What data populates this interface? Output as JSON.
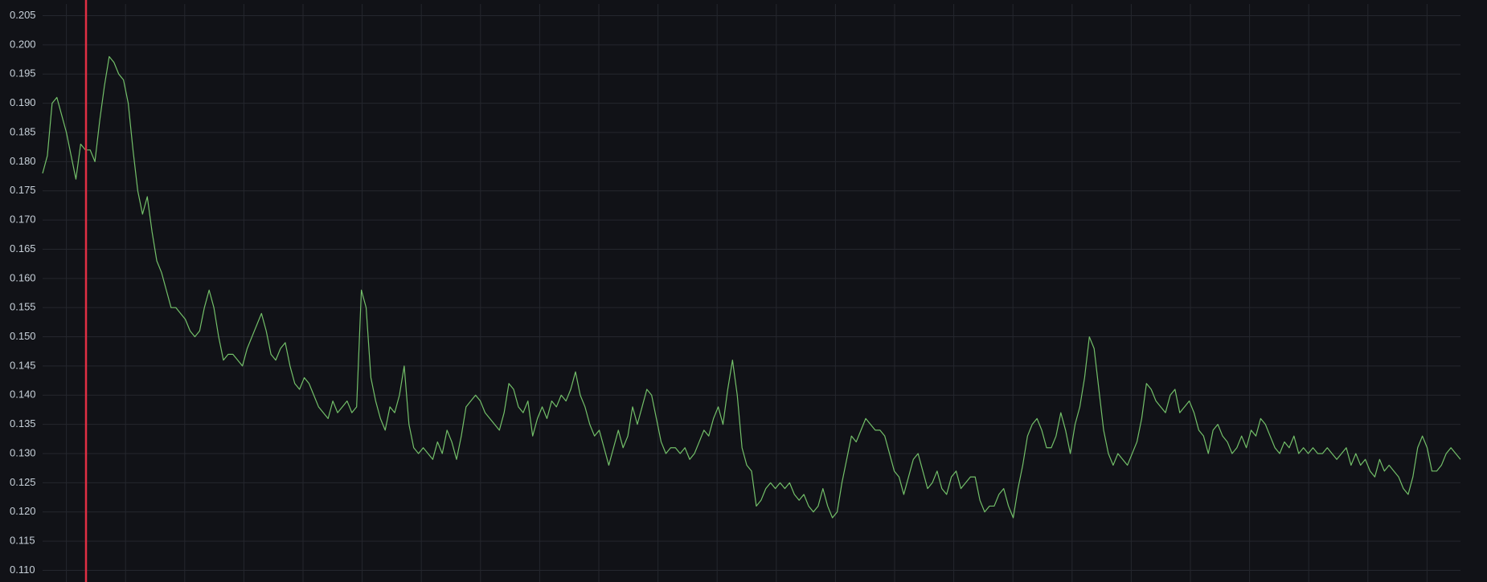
{
  "chart_data": {
    "type": "line",
    "series": [
      {
        "color": "#73bf69",
        "values": [
          0.178,
          0.181,
          0.19,
          0.191,
          0.188,
          0.185,
          0.181,
          0.177,
          0.183,
          0.182,
          0.182,
          0.18,
          0.187,
          0.193,
          0.198,
          0.197,
          0.195,
          0.194,
          0.19,
          0.182,
          0.175,
          0.171,
          0.174,
          0.168,
          0.163,
          0.161,
          0.158,
          0.155,
          0.155,
          0.154,
          0.153,
          0.151,
          0.15,
          0.151,
          0.155,
          0.158,
          0.155,
          0.15,
          0.146,
          0.147,
          0.147,
          0.146,
          0.145,
          0.148,
          0.15,
          0.152,
          0.154,
          0.151,
          0.147,
          0.146,
          0.148,
          0.149,
          0.145,
          0.142,
          0.141,
          0.143,
          0.142,
          0.14,
          0.138,
          0.137,
          0.136,
          0.139,
          0.137,
          0.138,
          0.139,
          0.137,
          0.138,
          0.158,
          0.155,
          0.143,
          0.139,
          0.136,
          0.134,
          0.138,
          0.137,
          0.14,
          0.145,
          0.135,
          0.131,
          0.13,
          0.131,
          0.13,
          0.129,
          0.132,
          0.13,
          0.134,
          0.132,
          0.129,
          0.133,
          0.138,
          0.139,
          0.14,
          0.139,
          0.137,
          0.136,
          0.135,
          0.134,
          0.137,
          0.142,
          0.141,
          0.138,
          0.137,
          0.139,
          0.133,
          0.136,
          0.138,
          0.136,
          0.139,
          0.138,
          0.14,
          0.139,
          0.141,
          0.144,
          0.14,
          0.138,
          0.135,
          0.133,
          0.134,
          0.131,
          0.128,
          0.131,
          0.134,
          0.131,
          0.133,
          0.138,
          0.135,
          0.138,
          0.141,
          0.14,
          0.136,
          0.132,
          0.13,
          0.131,
          0.131,
          0.13,
          0.131,
          0.129,
          0.13,
          0.132,
          0.134,
          0.133,
          0.136,
          0.138,
          0.135,
          0.141,
          0.146,
          0.14,
          0.131,
          0.128,
          0.127,
          0.121,
          0.122,
          0.124,
          0.125,
          0.124,
          0.125,
          0.124,
          0.125,
          0.123,
          0.122,
          0.123,
          0.121,
          0.12,
          0.121,
          0.124,
          0.121,
          0.119,
          0.12,
          0.125,
          0.129,
          0.133,
          0.132,
          0.134,
          0.136,
          0.135,
          0.134,
          0.134,
          0.133,
          0.13,
          0.127,
          0.126,
          0.123,
          0.126,
          0.129,
          0.13,
          0.127,
          0.124,
          0.125,
          0.127,
          0.124,
          0.123,
          0.126,
          0.127,
          0.124,
          0.125,
          0.126,
          0.126,
          0.122,
          0.12,
          0.121,
          0.121,
          0.123,
          0.124,
          0.121,
          0.119,
          0.124,
          0.128,
          0.133,
          0.135,
          0.136,
          0.134,
          0.131,
          0.131,
          0.133,
          0.137,
          0.134,
          0.13,
          0.135,
          0.138,
          0.143,
          0.15,
          0.148,
          0.141,
          0.134,
          0.13,
          0.128,
          0.13,
          0.129,
          0.128,
          0.13,
          0.132,
          0.136,
          0.142,
          0.141,
          0.139,
          0.138,
          0.137,
          0.14,
          0.141,
          0.137,
          0.138,
          0.139,
          0.137,
          0.134,
          0.133,
          0.13,
          0.134,
          0.135,
          0.133,
          0.132,
          0.13,
          0.131,
          0.133,
          0.131,
          0.134,
          0.133,
          0.136,
          0.135,
          0.133,
          0.131,
          0.13,
          0.132,
          0.131,
          0.133,
          0.13,
          0.131,
          0.13,
          0.131,
          0.13,
          0.13,
          0.131,
          0.13,
          0.129,
          0.13,
          0.131,
          0.128,
          0.13,
          0.128,
          0.129,
          0.127,
          0.126,
          0.129,
          0.127,
          0.128,
          0.127,
          0.126,
          0.124,
          0.123,
          0.126,
          0.131,
          0.133,
          0.131,
          0.127,
          0.127,
          0.128,
          0.13,
          0.131,
          0.13,
          0.129
        ]
      }
    ],
    "ylim": [
      0.108,
      0.207
    ],
    "yticks": [
      {
        "value": 0.11,
        "label": "0.110"
      },
      {
        "value": 0.115,
        "label": "0.115"
      },
      {
        "value": 0.12,
        "label": "0.120"
      },
      {
        "value": 0.125,
        "label": "0.125"
      },
      {
        "value": 0.13,
        "label": "0.130"
      },
      {
        "value": 0.135,
        "label": "0.135"
      },
      {
        "value": 0.14,
        "label": "0.140"
      },
      {
        "value": 0.145,
        "label": "0.145"
      },
      {
        "value": 0.15,
        "label": "0.150"
      },
      {
        "value": 0.155,
        "label": "0.155"
      },
      {
        "value": 0.16,
        "label": "0.160"
      },
      {
        "value": 0.165,
        "label": "0.165"
      },
      {
        "value": 0.17,
        "label": "0.170"
      },
      {
        "value": 0.175,
        "label": "0.175"
      },
      {
        "value": 0.18,
        "label": "0.180"
      },
      {
        "value": 0.185,
        "label": "0.185"
      },
      {
        "value": 0.19,
        "label": "0.190"
      },
      {
        "value": 0.195,
        "label": "0.195"
      },
      {
        "value": 0.2,
        "label": "0.200"
      },
      {
        "value": 0.205,
        "label": "0.205"
      }
    ],
    "grid": true
  }
}
